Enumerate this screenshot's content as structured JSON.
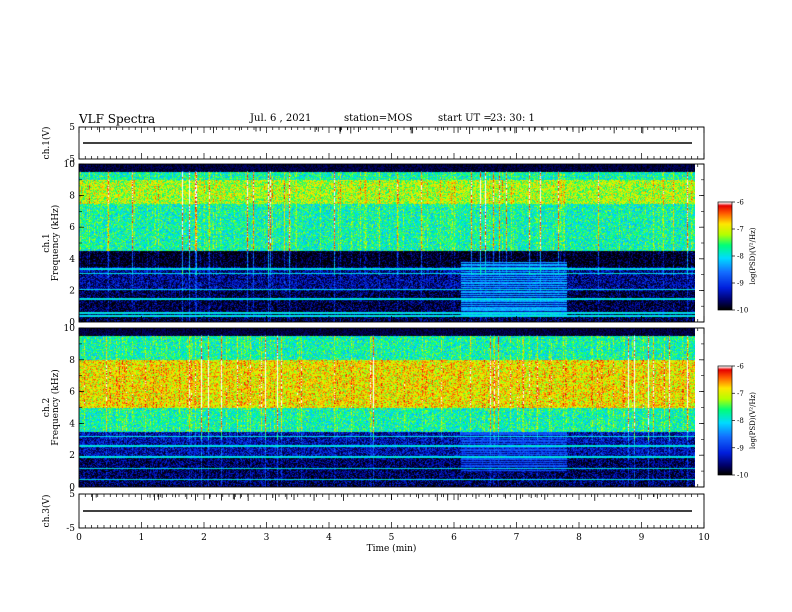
{
  "header": {
    "title": "VLF Spectra",
    "date": "Jul. 6 , 2021",
    "station": "station=MOS",
    "start_label": "start UT =",
    "start_time": "23: 30: 1"
  },
  "chart_data": [
    {
      "type": "line",
      "panel": "ch1-waveform",
      "ylabel": "ch.1(V)",
      "yticks": [
        "5",
        "-5"
      ],
      "ylim": [
        -5,
        5
      ],
      "x": [
        0,
        10
      ],
      "values": [
        0,
        0
      ]
    },
    {
      "type": "heatmap",
      "panel": "ch1-spectrogram",
      "ylabel": "ch.1\nFrequency (kHz)",
      "yticks": [
        "0",
        "2",
        "4",
        "6",
        "8",
        "10"
      ],
      "ylim": [
        0,
        10
      ],
      "xlim": [
        0,
        9.85
      ],
      "colorbar": {
        "label": "log(PSD)(V²/Hz)",
        "ticks": [
          "-6",
          "-7",
          "-8",
          "-9",
          "-10"
        ],
        "range": [
          -10,
          -6
        ]
      },
      "bands": [
        {
          "fmin": 4.5,
          "fmax": 9.5,
          "level": -7.8
        },
        {
          "fmin": 7.5,
          "fmax": 9.0,
          "level": -7.2
        },
        {
          "fmin": 2.0,
          "fmax": 3.5,
          "level": -9.5
        },
        {
          "fmin": 0.0,
          "fmax": 2.0,
          "level": -9.8
        }
      ],
      "burst": {
        "tmin": 6.1,
        "tmax": 7.8,
        "fmin": 0.5,
        "fmax": 3.8,
        "level": -8.3
      },
      "lines_khz": [
        0.4,
        0.6,
        1.5,
        2.1,
        3.1,
        3.4
      ]
    },
    {
      "type": "heatmap",
      "panel": "ch2-spectrogram",
      "ylabel": "ch.2\nFrequency (kHz)",
      "yticks": [
        "0",
        "2",
        "4",
        "6",
        "8",
        "10"
      ],
      "ylim": [
        0,
        10
      ],
      "xlim": [
        0,
        9.85
      ],
      "colorbar": {
        "label": "log(PSD)(V²/Hz)",
        "ticks": [
          "-6",
          "-7",
          "-8",
          "-9",
          "-10"
        ],
        "range": [
          -10,
          -6
        ]
      },
      "bands": [
        {
          "fmin": 3.5,
          "fmax": 9.5,
          "level": -7.8
        },
        {
          "fmin": 5.0,
          "fmax": 8.0,
          "level": -6.9
        },
        {
          "fmin": 2.0,
          "fmax": 3.5,
          "level": -9.4
        },
        {
          "fmin": 0.0,
          "fmax": 2.0,
          "level": -9.7
        }
      ],
      "burst": {
        "tmin": 6.1,
        "tmax": 7.8,
        "fmin": 1.0,
        "fmax": 3.5,
        "level": -8.8
      },
      "lines_khz": [
        0.5,
        1.2,
        1.9,
        2.6,
        3.2
      ]
    },
    {
      "type": "line",
      "panel": "ch3-waveform",
      "ylabel": "ch.3(V)",
      "yticks": [
        "5",
        "-5"
      ],
      "ylim": [
        -5,
        5
      ],
      "x": [
        0,
        10
      ],
      "values": [
        0,
        0
      ]
    }
  ],
  "x_axis": {
    "label": "Time (min)",
    "ticks": [
      "0",
      "1",
      "2",
      "3",
      "4",
      "5",
      "6",
      "7",
      "8",
      "9",
      "10"
    ],
    "range": [
      0,
      10
    ]
  },
  "colors": {
    "colormap": [
      "#000000",
      "#0000c8",
      "#1e64ff",
      "#00dcff",
      "#00ff64",
      "#c8ff00",
      "#ffe600",
      "#ff6400",
      "#ff0000",
      "#ffffff"
    ]
  }
}
